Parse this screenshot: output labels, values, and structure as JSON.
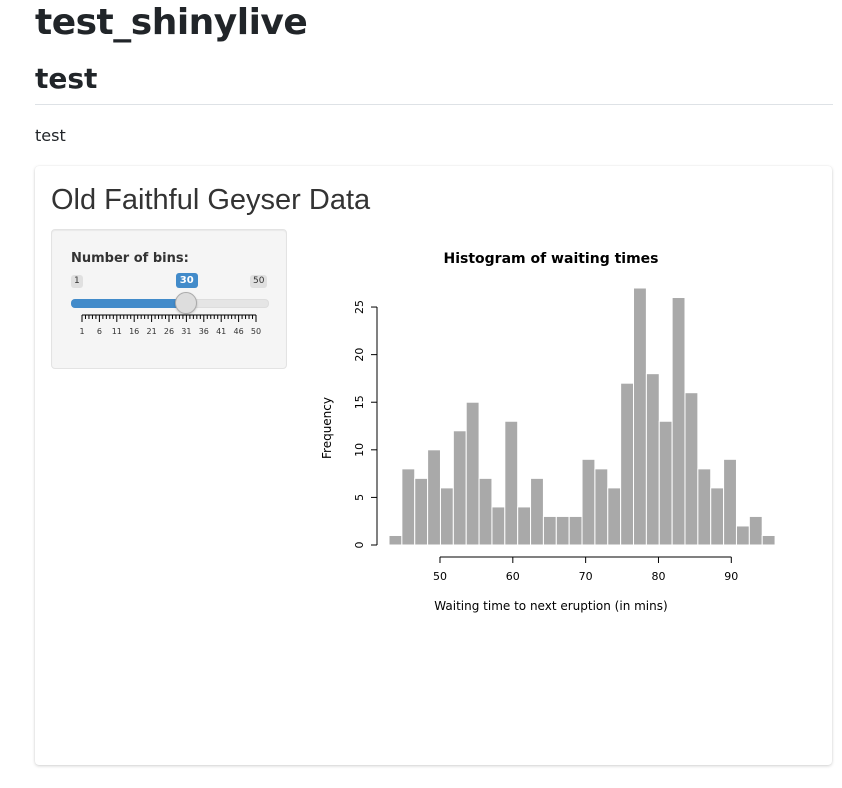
{
  "page": {
    "title": "test_shinylive",
    "section_heading": "test",
    "paragraph": "test"
  },
  "app": {
    "title": "Old Faithful Geyser Data",
    "slider": {
      "label": "Number of bins:",
      "min": 1,
      "max": 50,
      "value": 30,
      "min_label": "1",
      "max_label": "50",
      "value_label": "30",
      "tick_labels": [
        "1",
        "6",
        "11",
        "16",
        "21",
        "26",
        "31",
        "36",
        "41",
        "46",
        "50"
      ],
      "accent_color": "#428bca"
    }
  },
  "chart_data": {
    "type": "bar",
    "title": "Histogram of waiting times",
    "xlabel": "Waiting time to next eruption (in mins)",
    "ylabel": "Frequency",
    "bin_start": 43,
    "bin_width": 1.767,
    "values": [
      1,
      8,
      7,
      10,
      6,
      12,
      15,
      7,
      4,
      13,
      4,
      7,
      3,
      3,
      3,
      9,
      8,
      6,
      17,
      27,
      18,
      13,
      26,
      16,
      8,
      6,
      9,
      2,
      3,
      1
    ],
    "xlim": [
      43,
      96
    ],
    "ylim": [
      0,
      27
    ],
    "x_ticks": [
      50,
      60,
      70,
      80,
      90
    ],
    "y_ticks": [
      0,
      5,
      10,
      15,
      20,
      25
    ],
    "bar_color": "#a9a9a9",
    "grid": false
  }
}
